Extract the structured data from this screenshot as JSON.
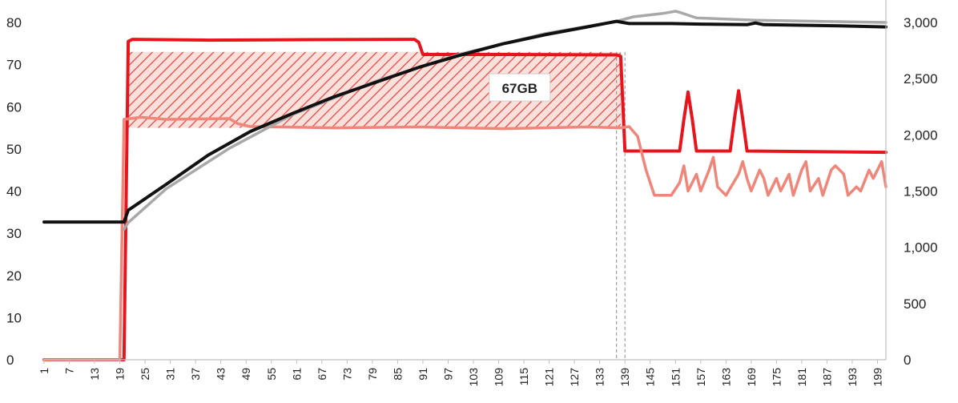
{
  "chart_data": {
    "type": "line",
    "title": "",
    "xlabel": "",
    "ylabel": "",
    "y2label": "",
    "x_tick_labels": [
      "1",
      "7",
      "13",
      "19",
      "25",
      "31",
      "37",
      "43",
      "49",
      "55",
      "61",
      "67",
      "73",
      "79",
      "85",
      "91",
      "97",
      "103",
      "109",
      "115",
      "121",
      "127",
      "133",
      "139",
      "145",
      "151",
      "157",
      "163",
      "169",
      "175",
      "181",
      "187",
      "193",
      "199"
    ],
    "x_range": [
      1,
      201
    ],
    "y_left_range": [
      0,
      80
    ],
    "y_left_ticks": [
      "0",
      "10",
      "20",
      "30",
      "40",
      "50",
      "60",
      "70",
      "80"
    ],
    "y_right_range": [
      0,
      3000
    ],
    "y_right_ticks": [
      "0",
      "500",
      "1,000",
      "1,500",
      "2,000",
      "2,500",
      "3,000"
    ],
    "grid": false,
    "legend": "none",
    "annotation": {
      "label": "67GB",
      "x_range": [
        21,
        138
      ],
      "y_range": [
        55,
        73
      ]
    },
    "reference_lines_x": [
      137,
      139
    ],
    "colors": {
      "red": "#e8141c",
      "light_red": "#f0857a",
      "black": "#111111",
      "gray": "#a8a8a8",
      "hatch": "#e8403a",
      "hatch_bg": "#fbe0dc"
    },
    "series": [
      {
        "axis": "left",
        "color": "#e8141c",
        "width": 4,
        "points": [
          [
            1,
            0
          ],
          [
            19,
            0
          ],
          [
            20,
            0
          ],
          [
            21,
            75.5
          ],
          [
            22,
            76
          ],
          [
            40,
            75.8
          ],
          [
            60,
            75.9
          ],
          [
            89,
            76
          ],
          [
            90,
            75.3
          ],
          [
            91,
            72.4
          ],
          [
            110,
            72.4
          ],
          [
            137,
            72.3
          ],
          [
            138,
            72
          ],
          [
            139,
            49.5
          ],
          [
            146,
            49.5
          ],
          [
            152,
            49.5
          ],
          [
            153,
            57
          ],
          [
            154,
            63.5
          ],
          [
            155,
            57
          ],
          [
            156,
            49.5
          ],
          [
            164,
            49.5
          ],
          [
            165,
            57
          ],
          [
            166,
            63.8
          ],
          [
            167,
            57
          ],
          [
            168,
            49.5
          ],
          [
            201,
            49.2
          ]
        ]
      },
      {
        "axis": "left",
        "color": "#f0857a",
        "width": 3.5,
        "points": [
          [
            1,
            0
          ],
          [
            19,
            0
          ],
          [
            20,
            57
          ],
          [
            24,
            57.5
          ],
          [
            30,
            57
          ],
          [
            45,
            57.2
          ],
          [
            47,
            56
          ],
          [
            50,
            55.3
          ],
          [
            70,
            55
          ],
          [
            90,
            55.2
          ],
          [
            110,
            54.8
          ],
          [
            130,
            55.2
          ],
          [
            138,
            55
          ],
          [
            140,
            55.3
          ],
          [
            142,
            53
          ],
          [
            143,
            49
          ],
          [
            144,
            45
          ],
          [
            146,
            39
          ],
          [
            150,
            39
          ],
          [
            152,
            42
          ],
          [
            153,
            46
          ],
          [
            154,
            40
          ],
          [
            156,
            44
          ],
          [
            157,
            40
          ],
          [
            159,
            45
          ],
          [
            160,
            48
          ],
          [
            161,
            41
          ],
          [
            163,
            39
          ],
          [
            166,
            44
          ],
          [
            167,
            47
          ],
          [
            168,
            43
          ],
          [
            169,
            40
          ],
          [
            171,
            45
          ],
          [
            172,
            43
          ],
          [
            173,
            39
          ],
          [
            175,
            43
          ],
          [
            176,
            40
          ],
          [
            178,
            44
          ],
          [
            179,
            39
          ],
          [
            181,
            45
          ],
          [
            182,
            47
          ],
          [
            183,
            40
          ],
          [
            185,
            43
          ],
          [
            186,
            39
          ],
          [
            188,
            45
          ],
          [
            189,
            46
          ],
          [
            191,
            44
          ],
          [
            192,
            39
          ],
          [
            194,
            41
          ],
          [
            195,
            40
          ],
          [
            197,
            45
          ],
          [
            198,
            43
          ],
          [
            200,
            47
          ],
          [
            201,
            41
          ]
        ]
      },
      {
        "axis": "right",
        "color": "#a8a8a8",
        "width": 3.5,
        "points": [
          [
            20,
            1160
          ],
          [
            21,
            1220
          ],
          [
            30,
            1520
          ],
          [
            45,
            1880
          ],
          [
            60,
            2180
          ],
          [
            80,
            2480
          ],
          [
            100,
            2720
          ],
          [
            120,
            2900
          ],
          [
            137,
            3010
          ],
          [
            141,
            3050
          ],
          [
            148,
            3080
          ],
          [
            151,
            3100
          ],
          [
            152,
            3090
          ],
          [
            156,
            3040
          ],
          [
            170,
            3020
          ],
          [
            185,
            3010
          ],
          [
            201,
            3000
          ]
        ]
      },
      {
        "axis": "right",
        "color": "#111111",
        "width": 4,
        "points": [
          [
            1,
            1225
          ],
          [
            20,
            1225
          ],
          [
            21,
            1330
          ],
          [
            30,
            1560
          ],
          [
            40,
            1820
          ],
          [
            50,
            2030
          ],
          [
            60,
            2190
          ],
          [
            70,
            2340
          ],
          [
            80,
            2470
          ],
          [
            90,
            2600
          ],
          [
            100,
            2710
          ],
          [
            110,
            2810
          ],
          [
            120,
            2890
          ],
          [
            130,
            2960
          ],
          [
            137,
            3010
          ],
          [
            140,
            2990
          ],
          [
            150,
            2990
          ],
          [
            157,
            2985
          ],
          [
            168,
            2980
          ],
          [
            170,
            2995
          ],
          [
            172,
            2980
          ],
          [
            190,
            2970
          ],
          [
            201,
            2960
          ]
        ]
      }
    ]
  }
}
